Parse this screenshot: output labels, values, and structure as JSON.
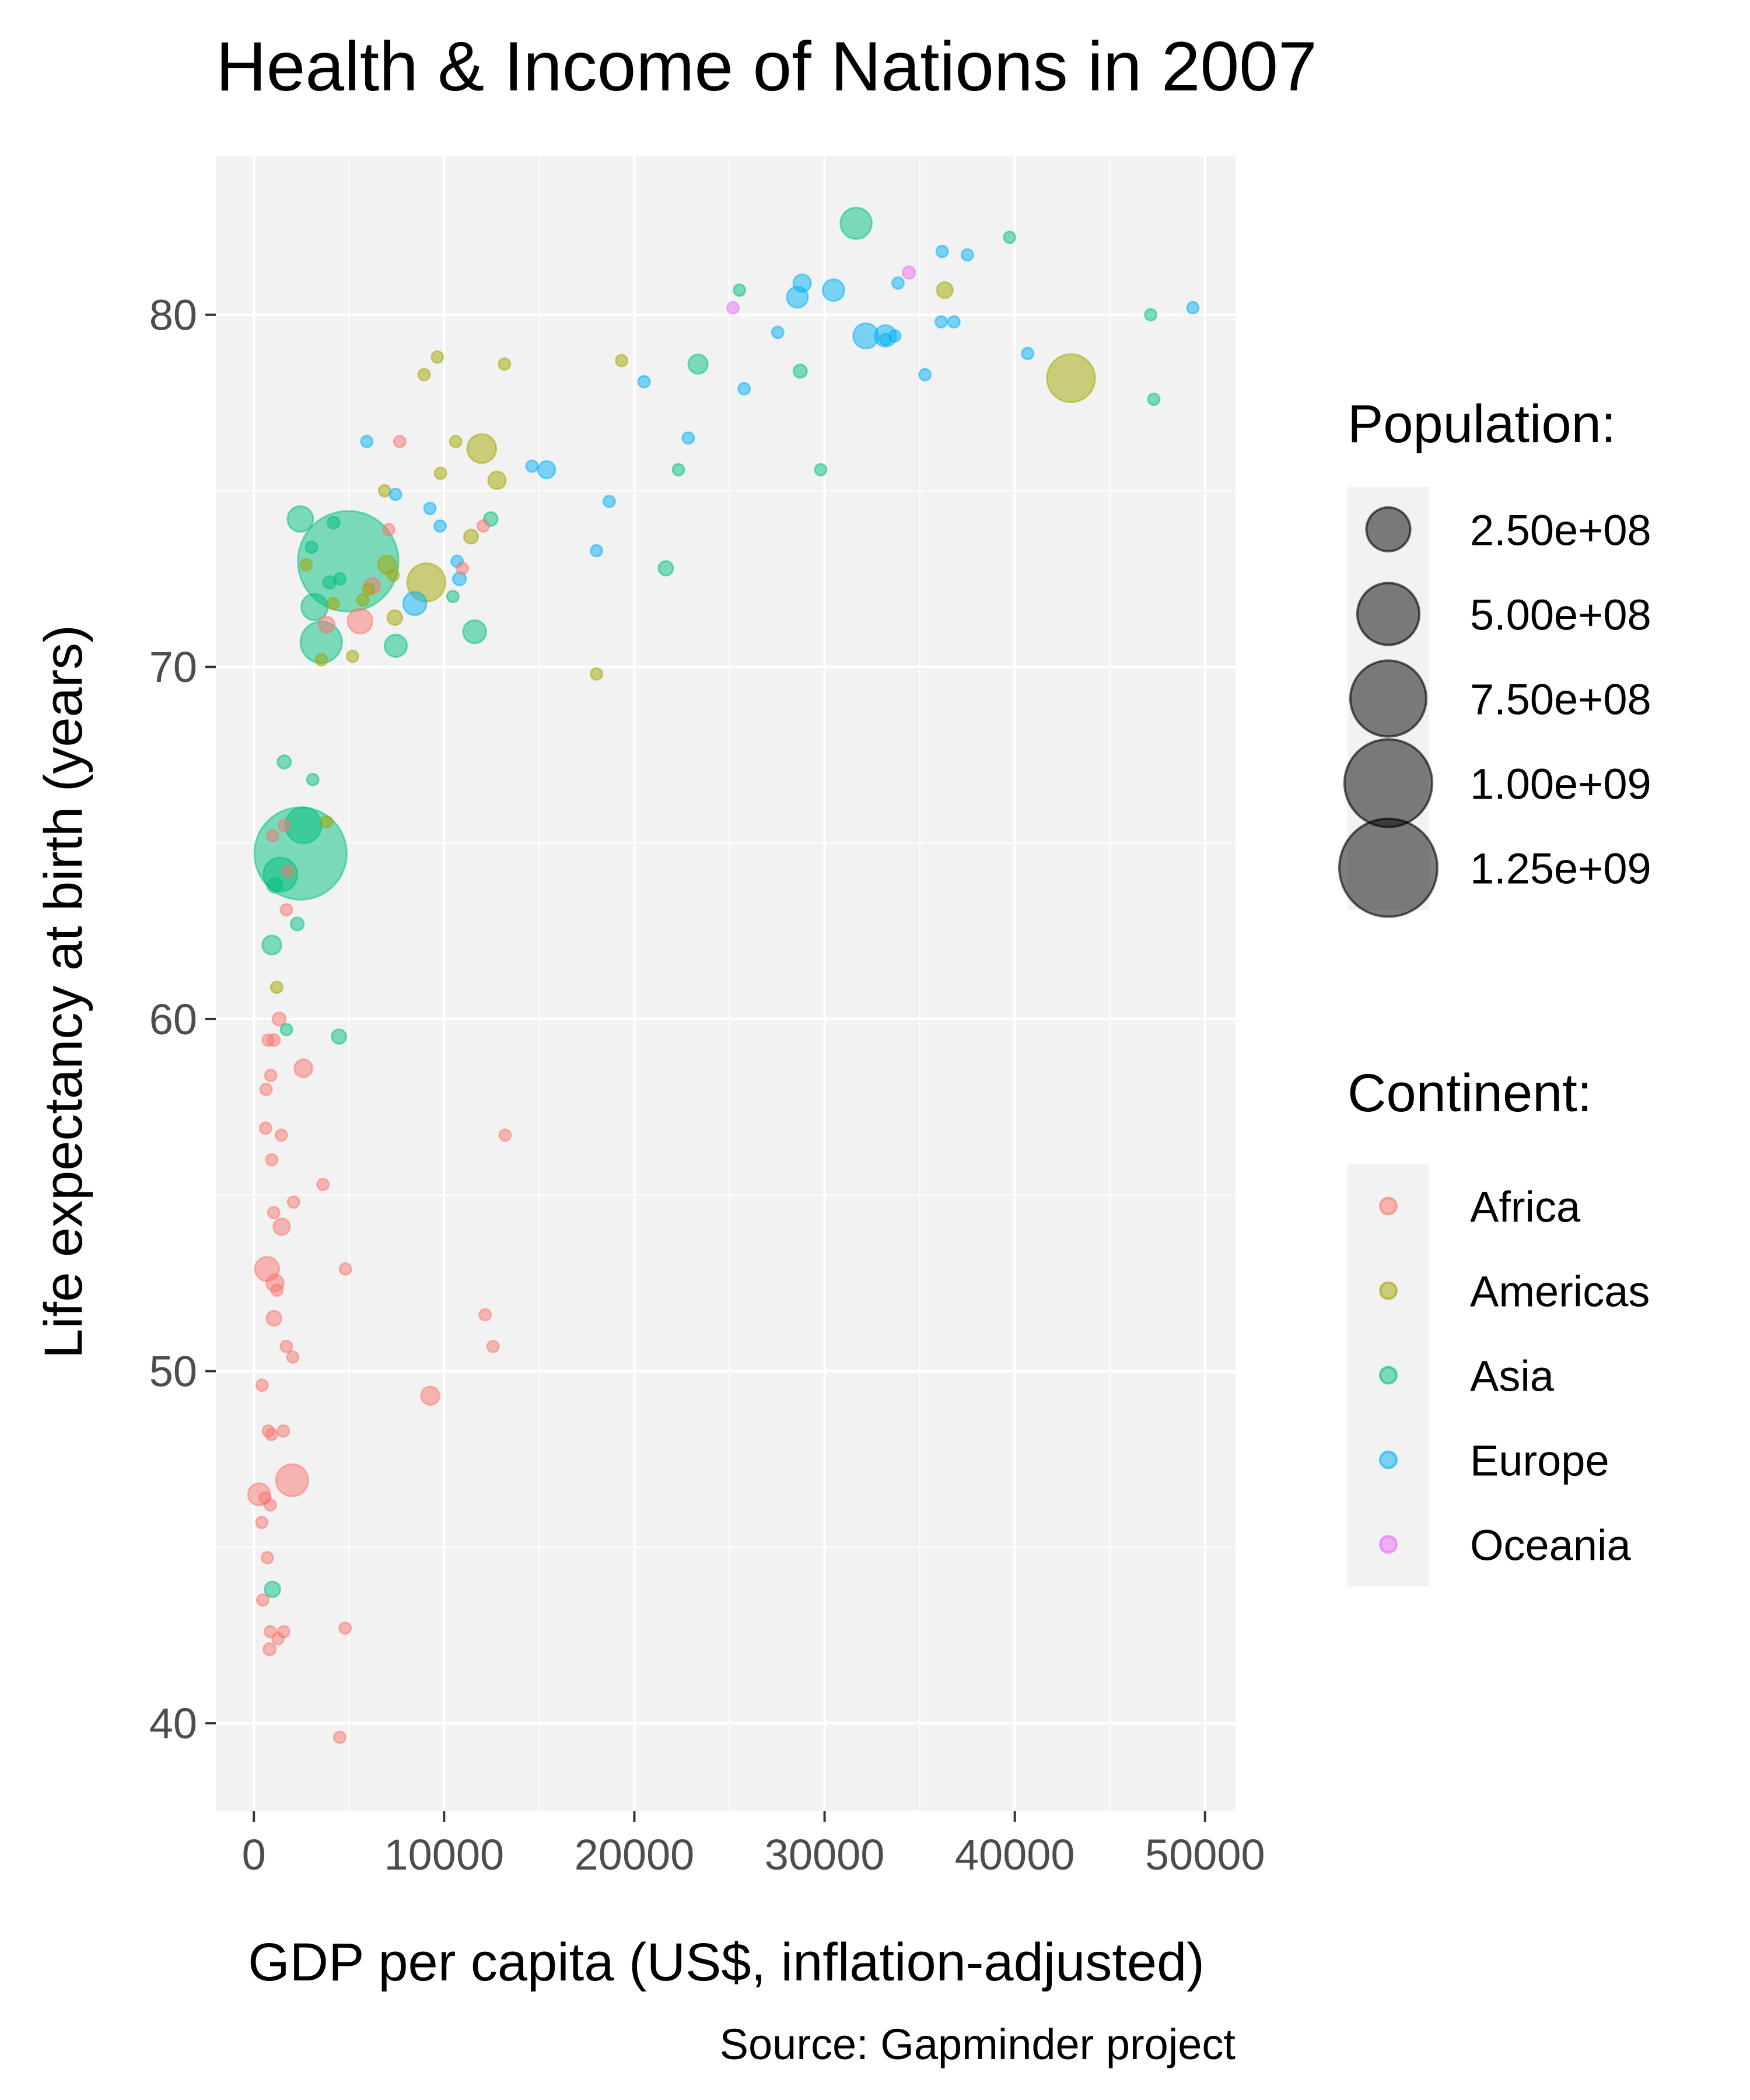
{
  "chart_data": {
    "type": "scatter",
    "title": "Health & Income of Nations in 2007",
    "xlabel": "GDP per capita (US$, inflation-adjusted)",
    "ylabel": "Life expectancy at birth (years)",
    "caption": "Source: Gapminder project",
    "xlim": [
      -2000,
      51600
    ],
    "ylim": [
      37.5,
      84.5
    ],
    "x_ticks": [
      0,
      10000,
      20000,
      30000,
      40000,
      50000
    ],
    "x_tick_labels": [
      "0",
      "10000",
      "20000",
      "30000",
      "40000",
      "50000"
    ],
    "y_ticks": [
      40,
      50,
      60,
      70,
      80
    ],
    "y_tick_labels": [
      "40",
      "50",
      "60",
      "70",
      "80"
    ],
    "grid": true,
    "legend_position": "right",
    "size_legend": {
      "title": "Population:",
      "values": [
        250000000,
        500000000,
        750000000,
        1000000000,
        1250000000
      ],
      "labels": [
        "2.50e+08",
        "5.00e+08",
        "7.50e+08",
        "1.00e+09",
        "1.25e+09"
      ]
    },
    "color_legend": {
      "title": "Continent:",
      "entries": [
        "Africa",
        "Americas",
        "Asia",
        "Europe",
        "Oceania"
      ]
    },
    "colors": {
      "Africa": "#F8766D",
      "Americas": "#A3A500",
      "Asia": "#00BF7D",
      "Europe": "#00B0F6",
      "Oceania": "#E76BF3",
      "size_legend_point": "#000000",
      "panel_background": "#f2f2f2",
      "grid": "#ffffff"
    },
    "series": [
      {
        "name": "Africa",
        "points": [
          {
            "x": 6223,
            "y": 72.3,
            "pop": 33000000
          },
          {
            "x": 4797,
            "y": 42.7,
            "pop": 12400000
          },
          {
            "x": 1441,
            "y": 56.7,
            "pop": 8100000
          },
          {
            "x": 12570,
            "y": 50.7,
            "pop": 1600000
          },
          {
            "x": 1217,
            "y": 52.3,
            "pop": 14300000
          },
          {
            "x": 430,
            "y": 49.6,
            "pop": 8400000
          },
          {
            "x": 2042,
            "y": 50.4,
            "pop": 17700000
          },
          {
            "x": 706,
            "y": 44.7,
            "pop": 4400000
          },
          {
            "x": 1704,
            "y": 50.7,
            "pop": 10200000
          },
          {
            "x": 986,
            "y": 65.2,
            "pop": 700000
          },
          {
            "x": 278,
            "y": 46.5,
            "pop": 64600000
          },
          {
            "x": 3633,
            "y": 55.3,
            "pop": 3800000
          },
          {
            "x": 1545,
            "y": 48.3,
            "pop": 18000000
          },
          {
            "x": 2082,
            "y": 54.8,
            "pop": 500000
          },
          {
            "x": 5581,
            "y": 71.3,
            "pop": 80300000
          },
          {
            "x": 12154,
            "y": 51.6,
            "pop": 600000
          },
          {
            "x": 642,
            "y": 58.0,
            "pop": 4900000
          },
          {
            "x": 690,
            "y": 52.9,
            "pop": 76500000
          },
          {
            "x": 13206,
            "y": 56.7,
            "pop": 1500000
          },
          {
            "x": 753,
            "y": 59.4,
            "pop": 1700000
          },
          {
            "x": 1328,
            "y": 60.0,
            "pop": 22900000
          },
          {
            "x": 943,
            "y": 56.0,
            "pop": 9900000
          },
          {
            "x": 579,
            "y": 46.4,
            "pop": 1500000
          },
          {
            "x": 1463,
            "y": 54.1,
            "pop": 35600000
          },
          {
            "x": 1569,
            "y": 42.6,
            "pop": 2000000
          },
          {
            "x": 415,
            "y": 45.7,
            "pop": 3200000
          },
          {
            "x": 12057,
            "y": 74.0,
            "pop": 6000000
          },
          {
            "x": 1045,
            "y": 59.4,
            "pop": 19200000
          },
          {
            "x": 759,
            "y": 48.3,
            "pop": 13300000
          },
          {
            "x": 1042,
            "y": 54.5,
            "pop": 12000000
          },
          {
            "x": 1803,
            "y": 64.2,
            "pop": 3300000
          },
          {
            "x": 10957,
            "y": 72.8,
            "pop": 1200000
          },
          {
            "x": 3820,
            "y": 71.2,
            "pop": 33800000
          },
          {
            "x": 824,
            "y": 42.1,
            "pop": 19900000
          },
          {
            "x": 4811,
            "y": 52.9,
            "pop": 2100000
          },
          {
            "x": 620,
            "y": 56.9,
            "pop": 12900000
          },
          {
            "x": 2014,
            "y": 46.9,
            "pop": 135000000
          },
          {
            "x": 7670,
            "y": 76.4,
            "pop": 800000
          },
          {
            "x": 863,
            "y": 46.2,
            "pop": 8900000
          },
          {
            "x": 1598,
            "y": 65.5,
            "pop": 200000
          },
          {
            "x": 1712,
            "y": 63.1,
            "pop": 12300000
          },
          {
            "x": 862,
            "y": 42.6,
            "pop": 6100000
          },
          {
            "x": 926,
            "y": 48.2,
            "pop": 9100000
          },
          {
            "x": 9270,
            "y": 49.3,
            "pop": 44000000
          },
          {
            "x": 2602,
            "y": 58.6,
            "pop": 42300000
          },
          {
            "x": 4513,
            "y": 39.6,
            "pop": 1100000
          },
          {
            "x": 1107,
            "y": 52.5,
            "pop": 39000000
          },
          {
            "x": 883,
            "y": 58.4,
            "pop": 5700000
          },
          {
            "x": 7093,
            "y": 73.9,
            "pop": 10300000
          },
          {
            "x": 1056,
            "y": 51.5,
            "pop": 29200000
          },
          {
            "x": 1271,
            "y": 42.4,
            "pop": 11700000
          },
          {
            "x": 470,
            "y": 43.5,
            "pop": 12300000
          }
        ]
      },
      {
        "name": "Americas",
        "points": [
          {
            "x": 12779,
            "y": 75.3,
            "pop": 40300000
          },
          {
            "x": 3822,
            "y": 65.6,
            "pop": 9100000
          },
          {
            "x": 9066,
            "y": 72.4,
            "pop": 190000000
          },
          {
            "x": 36319,
            "y": 80.7,
            "pop": 33400000
          },
          {
            "x": 13172,
            "y": 78.6,
            "pop": 16300000
          },
          {
            "x": 7007,
            "y": 72.9,
            "pop": 44200000
          },
          {
            "x": 9645,
            "y": 78.8,
            "pop": 4100000
          },
          {
            "x": 8948,
            "y": 78.3,
            "pop": 11400000
          },
          {
            "x": 6025,
            "y": 72.2,
            "pop": 9300000
          },
          {
            "x": 6873,
            "y": 75.0,
            "pop": 13800000
          },
          {
            "x": 5728,
            "y": 71.9,
            "pop": 6900000
          },
          {
            "x": 5186,
            "y": 70.3,
            "pop": 12600000
          },
          {
            "x": 1202,
            "y": 60.9,
            "pop": 8500000
          },
          {
            "x": 3548,
            "y": 70.2,
            "pop": 7500000
          },
          {
            "x": 7321,
            "y": 72.6,
            "pop": 2800000
          },
          {
            "x": 11978,
            "y": 76.2,
            "pop": 108700000
          },
          {
            "x": 2749,
            "y": 72.9,
            "pop": 5700000
          },
          {
            "x": 9809,
            "y": 75.5,
            "pop": 3200000
          },
          {
            "x": 4173,
            "y": 71.8,
            "pop": 6700000
          },
          {
            "x": 7409,
            "y": 71.4,
            "pop": 28700000
          },
          {
            "x": 19329,
            "y": 78.7,
            "pop": 3900000
          },
          {
            "x": 18009,
            "y": 69.8,
            "pop": 1100000
          },
          {
            "x": 42952,
            "y": 78.2,
            "pop": 301100000
          },
          {
            "x": 10611,
            "y": 76.4,
            "pop": 3400000
          },
          {
            "x": 11416,
            "y": 73.7,
            "pop": 26100000
          }
        ]
      },
      {
        "name": "Asia",
        "points": [
          {
            "x": 975,
            "y": 43.8,
            "pop": 31900000
          },
          {
            "x": 29796,
            "y": 75.6,
            "pop": 700000
          },
          {
            "x": 1391,
            "y": 64.1,
            "pop": 150400000
          },
          {
            "x": 1714,
            "y": 59.7,
            "pop": 14100000
          },
          {
            "x": 4959,
            "y": 73.0,
            "pop": 1318700000
          },
          {
            "x": 39725,
            "y": 82.2,
            "pop": 6900000
          },
          {
            "x": 2452,
            "y": 64.7,
            "pop": 1110400000
          },
          {
            "x": 3541,
            "y": 70.7,
            "pop": 223500000
          },
          {
            "x": 11606,
            "y": 71.0,
            "pop": 69500000
          },
          {
            "x": 4471,
            "y": 59.5,
            "pop": 27500000
          },
          {
            "x": 25523,
            "y": 80.7,
            "pop": 6400000
          },
          {
            "x": 31656,
            "y": 82.6,
            "pop": 127500000
          },
          {
            "x": 4519,
            "y": 72.5,
            "pop": 6100000
          },
          {
            "x": 1593,
            "y": 67.3,
            "pop": 23300000
          },
          {
            "x": 23348,
            "y": 78.6,
            "pop": 49000000
          },
          {
            "x": 47307,
            "y": 77.6,
            "pop": 2500000
          },
          {
            "x": 10461,
            "y": 72.0,
            "pop": 3900000
          },
          {
            "x": 12452,
            "y": 74.2,
            "pop": 24800000
          },
          {
            "x": 3096,
            "y": 66.8,
            "pop": 2900000
          },
          {
            "x": 944,
            "y": 62.1,
            "pop": 47800000
          },
          {
            "x": 1091,
            "y": 63.8,
            "pop": 28900000
          },
          {
            "x": 22316,
            "y": 75.6,
            "pop": 3200000
          },
          {
            "x": 2606,
            "y": 65.5,
            "pop": 169300000
          },
          {
            "x": 3190,
            "y": 71.7,
            "pop": 91100000
          },
          {
            "x": 21655,
            "y": 72.8,
            "pop": 27600000
          },
          {
            "x": 47143,
            "y": 80.0,
            "pop": 4600000
          },
          {
            "x": 3970,
            "y": 72.4,
            "pop": 20400000
          },
          {
            "x": 4185,
            "y": 74.1,
            "pop": 19300000
          },
          {
            "x": 28718,
            "y": 78.4,
            "pop": 23200000
          },
          {
            "x": 7458,
            "y": 70.6,
            "pop": 65100000
          },
          {
            "x": 2442,
            "y": 74.2,
            "pop": 85300000
          },
          {
            "x": 3025,
            "y": 73.4,
            "pop": 4000000
          },
          {
            "x": 2281,
            "y": 62.7,
            "pop": 22200000
          }
        ]
      },
      {
        "name": "Europe",
        "points": [
          {
            "x": 5937,
            "y": 76.4,
            "pop": 3600000
          },
          {
            "x": 36126,
            "y": 79.8,
            "pop": 8200000
          },
          {
            "x": 33693,
            "y": 79.4,
            "pop": 10400000
          },
          {
            "x": 7446,
            "y": 74.9,
            "pop": 4600000
          },
          {
            "x": 10681,
            "y": 73.0,
            "pop": 7300000
          },
          {
            "x": 14619,
            "y": 75.7,
            "pop": 4500000
          },
          {
            "x": 22833,
            "y": 76.5,
            "pop": 10200000
          },
          {
            "x": 35278,
            "y": 78.3,
            "pop": 5500000
          },
          {
            "x": 33207,
            "y": 79.3,
            "pop": 5200000
          },
          {
            "x": 30470,
            "y": 80.7,
            "pop": 61100000
          },
          {
            "x": 32170,
            "y": 79.4,
            "pop": 82400000
          },
          {
            "x": 27538,
            "y": 79.5,
            "pop": 10700000
          },
          {
            "x": 18009,
            "y": 73.3,
            "pop": 10000000
          },
          {
            "x": 36181,
            "y": 81.8,
            "pop": 300000
          },
          {
            "x": 40676,
            "y": 78.9,
            "pop": 4100000
          },
          {
            "x": 28570,
            "y": 80.5,
            "pop": 58100000
          },
          {
            "x": 9254,
            "y": 74.5,
            "pop": 700000
          },
          {
            "x": 36798,
            "y": 79.8,
            "pop": 16600000
          },
          {
            "x": 49357,
            "y": 80.2,
            "pop": 4600000
          },
          {
            "x": 15390,
            "y": 75.6,
            "pop": 38500000
          },
          {
            "x": 20510,
            "y": 78.1,
            "pop": 10600000
          },
          {
            "x": 10808,
            "y": 72.5,
            "pop": 22300000
          },
          {
            "x": 9787,
            "y": 74.0,
            "pop": 10200000
          },
          {
            "x": 18678,
            "y": 74.7,
            "pop": 5400000
          },
          {
            "x": 25768,
            "y": 77.9,
            "pop": 2000000
          },
          {
            "x": 28821,
            "y": 80.9,
            "pop": 40400000
          },
          {
            "x": 33860,
            "y": 80.9,
            "pop": 9000000
          },
          {
            "x": 37506,
            "y": 81.7,
            "pop": 7600000
          },
          {
            "x": 8458,
            "y": 71.8,
            "pop": 71200000
          },
          {
            "x": 33203,
            "y": 79.4,
            "pop": 60800000
          }
        ]
      },
      {
        "name": "Oceania",
        "points": [
          {
            "x": 34435,
            "y": 81.2,
            "pop": 20400000
          },
          {
            "x": 25185,
            "y": 80.2,
            "pop": 4100000
          }
        ]
      }
    ]
  }
}
